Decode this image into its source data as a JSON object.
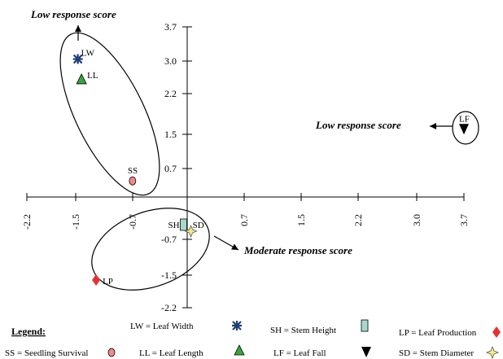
{
  "chart_data": {
    "type": "scatter",
    "title": "",
    "xlabel": "",
    "ylabel": "",
    "xlim": [
      -2.2,
      3.7
    ],
    "ylim": [
      -2.2,
      3.7
    ],
    "x_ticks": [
      "-2.2",
      "-1.5",
      "-0.7",
      "0.7",
      "1.5",
      "2.2",
      "3.0",
      "3.7"
    ],
    "y_ticks": [
      "3.7",
      "3.0",
      "2.2",
      "1.5",
      "0.7",
      "-0.7",
      "-1.5",
      "-2.2"
    ],
    "grid": false,
    "points": [
      {
        "label": "LW",
        "x": -1.5,
        "y": 3.0,
        "marker": "cross",
        "color": "#1f3f78"
      },
      {
        "label": "LL",
        "x": -1.45,
        "y": 2.55,
        "marker": "triangle-up",
        "color": "#3aa63a"
      },
      {
        "label": "SS",
        "x": -0.75,
        "y": 0.35,
        "marker": "circle",
        "color": "#f08a8a"
      },
      {
        "label": "SH",
        "x": -0.05,
        "y": -0.55,
        "marker": "rectangle",
        "color": "#a8d8cc"
      },
      {
        "label": "SD",
        "x": 0.05,
        "y": -0.68,
        "marker": "star",
        "color": "#f2ea82"
      },
      {
        "label": "LP",
        "x": -1.25,
        "y": -1.65,
        "marker": "diamond",
        "color": "#e83030"
      },
      {
        "label": "LF",
        "x": 3.7,
        "y": 1.5,
        "marker": "triangle-down",
        "color": "#000000"
      }
    ],
    "annotations": [
      {
        "text": "Low response score",
        "group": "LW-LL-SS"
      },
      {
        "text": "Low response score",
        "group": "LF"
      },
      {
        "text": "Moderate response score",
        "group": "SH-SD-LP"
      }
    ],
    "legend": {
      "title": "Legend:",
      "placement": "bottom",
      "entries": [
        {
          "text": "LW = Leaf Width",
          "marker": "cross",
          "color": "#1f3f78"
        },
        {
          "text": "SH = Stem Height",
          "marker": "rectangle",
          "color": "#a8d8cc"
        },
        {
          "text": "LP  = Leaf Production",
          "marker": "diamond",
          "color": "#e83030"
        },
        {
          "text": "SS = Seedling Survival",
          "marker": "circle",
          "color": "#f08a8a"
        },
        {
          "text": "LL = Leaf Length",
          "marker": "triangle-up",
          "color": "#3aa63a"
        },
        {
          "text": "LF = Leaf Fall",
          "marker": "triangle-down",
          "color": "#000000"
        },
        {
          "text": "SD  = Stem Diameter",
          "marker": "star",
          "color": "#f2ea82"
        }
      ]
    }
  }
}
